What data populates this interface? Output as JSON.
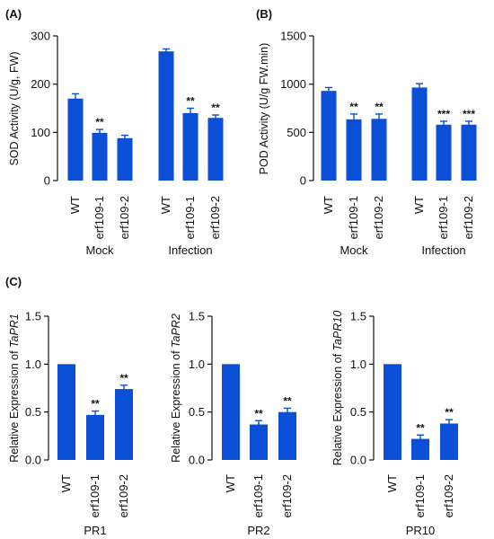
{
  "chart_data": [
    {
      "type": "bar",
      "panel": "(A)",
      "ylabel": "SOD Activity (U/g, FW)",
      "ylim": [
        0,
        300
      ],
      "yticks": [
        "0",
        "100",
        "200",
        "300"
      ],
      "groups": [
        {
          "name": "Mock",
          "categories": [
            "WT",
            "erf109-1",
            "erf109-2"
          ],
          "values": [
            170,
            99,
            88
          ],
          "errors": [
            10,
            7,
            6
          ],
          "significance": [
            "",
            "**",
            ""
          ]
        },
        {
          "name": "Infection",
          "categories": [
            "WT",
            "erf109-1",
            "erf109-2"
          ],
          "values": [
            268,
            140,
            130
          ],
          "errors": [
            5,
            10,
            6
          ],
          "significance": [
            "",
            "**",
            "**"
          ]
        }
      ],
      "bar_color": "#0a4fd6"
    },
    {
      "type": "bar",
      "panel": "(B)",
      "ylabel": "POD Activity (U/g FW.min)",
      "ylim": [
        0,
        1500
      ],
      "yticks": [
        "0",
        "500",
        "1000",
        "1500"
      ],
      "groups": [
        {
          "name": "Mock",
          "categories": [
            "WT",
            "erf109-1",
            "erf109-2"
          ],
          "values": [
            930,
            635,
            640
          ],
          "errors": [
            35,
            55,
            50
          ],
          "significance": [
            "",
            "**",
            "**"
          ]
        },
        {
          "name": "Infection",
          "categories": [
            "WT",
            "erf109-1",
            "erf109-2"
          ],
          "values": [
            965,
            580,
            580
          ],
          "errors": [
            40,
            35,
            35
          ],
          "significance": [
            "",
            "***",
            "***"
          ]
        }
      ],
      "bar_color": "#0a4fd6"
    },
    {
      "type": "bar",
      "panel": "(C)",
      "ylabel_prefix": "Relative Expression of ",
      "ylabel_gene": "TaPR1",
      "xlabel": "PR1",
      "ylim": [
        0,
        1.5
      ],
      "yticks": [
        "0.0",
        "0.5",
        "1.0",
        "1.5"
      ],
      "categories": [
        "WT",
        "erf109-1",
        "erf109-2"
      ],
      "values": [
        1.0,
        0.47,
        0.74
      ],
      "errors": [
        0,
        0.04,
        0.04
      ],
      "significance": [
        "",
        "**",
        "**"
      ],
      "bar_color": "#0a4fd6"
    },
    {
      "type": "bar",
      "ylabel_prefix": "Relative Expression of ",
      "ylabel_gene": "TaPR2",
      "xlabel": "PR2",
      "ylim": [
        0,
        1.5
      ],
      "yticks": [
        "0.0",
        "0.5",
        "1.0",
        "1.5"
      ],
      "categories": [
        "WT",
        "erf109-1",
        "erf109-2"
      ],
      "values": [
        1.0,
        0.37,
        0.5
      ],
      "errors": [
        0,
        0.04,
        0.04
      ],
      "significance": [
        "",
        "**",
        "**"
      ],
      "bar_color": "#0a4fd6"
    },
    {
      "type": "bar",
      "ylabel_prefix": "Relative Expression of ",
      "ylabel_gene": "TaPR10",
      "xlabel": "PR10",
      "ylim": [
        0,
        1.5
      ],
      "yticks": [
        "0.0",
        "0.5",
        "1.0",
        "1.5"
      ],
      "categories": [
        "WT",
        "erf109-1",
        "erf109-2"
      ],
      "values": [
        1.0,
        0.22,
        0.38
      ],
      "errors": [
        0,
        0.04,
        0.04
      ],
      "significance": [
        "",
        "**",
        "**"
      ],
      "bar_color": "#0a4fd6"
    }
  ]
}
